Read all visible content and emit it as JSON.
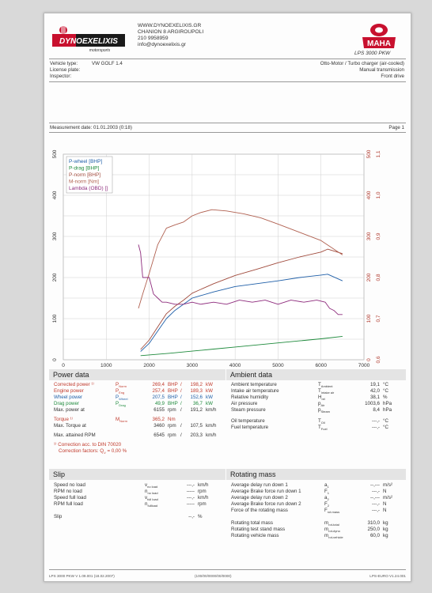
{
  "header": {
    "website": "WWW.DYNOEXELIXIS.GR",
    "street": "CHANION 8 ARGIROUPOLI",
    "phone": "210 9958959",
    "email": "info@dynoexelixis.gr",
    "logo_text": "DYNOEXELIXIS",
    "logo_sub": "motorsports",
    "brand": "MAHA",
    "model": "LPS 3000 PKW"
  },
  "vehicle": {
    "type_label": "Vehicle type:",
    "type_value": "VW GOLF 1.4",
    "plate_label": "License plate:",
    "inspector_label": "Inspector:",
    "engine": "Otto-Motor / Turbo charger (air-cooled)",
    "transmission": "Manual transmission",
    "drive": "Front drive"
  },
  "measurement": {
    "date_label": "Measurement date: 01.01.2003 (0:18)",
    "page": "Page 1"
  },
  "chart_data": {
    "type": "line",
    "xlabel": "n [rpm]",
    "xlim": [
      0,
      7000
    ],
    "x_ticks": [
      "0",
      "1000",
      "2000",
      "3000",
      "4000",
      "5000",
      "6000",
      "7000"
    ],
    "ylim_left": [
      0,
      500
    ],
    "left_ticks": [
      "0",
      "100",
      "200",
      "300",
      "400",
      "500"
    ],
    "right_outer_ticks": [
      "0",
      "100",
      "200",
      "300",
      "400",
      "500"
    ],
    "right_inner_ticks": [
      "0,6",
      "0,7",
      "0,8",
      "0,9",
      "1,0",
      "1,1"
    ],
    "grid": true,
    "legend_position": "top-left",
    "series": [
      {
        "name": "P-wheel [BHP]",
        "color": "#1f5fa8",
        "x": [
          1800,
          2000,
          2200,
          2400,
          2600,
          2800,
          3000,
          3500,
          4000,
          4500,
          5000,
          5500,
          6000,
          6155,
          6500
        ],
        "y": [
          20,
          40,
          70,
          100,
          120,
          135,
          150,
          165,
          178,
          185,
          192,
          200,
          206,
          208,
          192
        ]
      },
      {
        "name": "P-drag [BHP]",
        "color": "#1e8a3c",
        "x": [
          1800,
          2500,
          3000,
          3500,
          4000,
          4500,
          5000,
          5500,
          6000,
          6500
        ],
        "y": [
          10,
          16,
          21,
          26,
          31,
          36,
          41,
          46,
          51,
          57
        ]
      },
      {
        "name": "P-norm [BHP]",
        "color": "#a04a3c",
        "x": [
          1800,
          2000,
          2200,
          2400,
          2600,
          2800,
          3000,
          3500,
          4000,
          4500,
          5000,
          5500,
          6000,
          6155,
          6500
        ],
        "y": [
          25,
          48,
          80,
          112,
          130,
          145,
          162,
          185,
          205,
          220,
          236,
          250,
          262,
          269,
          258
        ]
      },
      {
        "name": "M-norm [Nm]",
        "color": "#b06050",
        "x": [
          1750,
          1850,
          2000,
          2200,
          2400,
          2600,
          2800,
          3000,
          3200,
          3460,
          3800,
          4200,
          4600,
          5000,
          5500,
          6000,
          6500
        ],
        "y": [
          125,
          160,
          210,
          280,
          320,
          328,
          335,
          350,
          358,
          365,
          362,
          355,
          345,
          330,
          310,
          290,
          255
        ]
      },
      {
        "name": "Lambda (OBD) []",
        "color": "#8e2c7d",
        "x": [
          1750,
          1800,
          1850,
          1900,
          2000,
          2100,
          2200,
          2300,
          2400,
          2600,
          2800,
          3000,
          3200,
          3500,
          3800,
          4100,
          4400,
          4700,
          5000,
          5300,
          5600,
          5900,
          6100,
          6200,
          6300,
          6400,
          6500
        ],
        "y": [
          0.88,
          0.86,
          0.8,
          0.8,
          0.8,
          0.76,
          0.75,
          0.74,
          0.74,
          0.735,
          0.735,
          0.74,
          0.735,
          0.74,
          0.735,
          0.745,
          0.74,
          0.745,
          0.735,
          0.745,
          0.74,
          0.745,
          0.74,
          0.725,
          0.72,
          0.71,
          0.71
        ]
      }
    ]
  },
  "power": {
    "title": "Power data",
    "corrected_label": "Corrected power ¹⁾",
    "corrected_sym": "P",
    "corrected_sub": "Norm",
    "corrected_v1": "269,4",
    "corrected_u1": "BHP",
    "corrected_v2": "198,2",
    "corrected_u2": "kW",
    "engine_label": "Engine power",
    "engine_sym": "P",
    "engine_sub": "Eng",
    "engine_v1": "257,4",
    "engine_u1": "BHP",
    "engine_v2": "189,3",
    "engine_u2": "kW",
    "wheel_label": "Wheel power",
    "wheel_sym": "P",
    "wheel_sub": "Wheel",
    "wheel_v1": "207,5",
    "wheel_u1": "BHP",
    "wheel_v2": "152,6",
    "wheel_u2": "kW",
    "drag_label": "Drag power",
    "drag_sym": "P",
    "drag_sub": "Drag",
    "drag_v1": "49,9",
    "drag_u1": "BHP",
    "drag_v2": "36,7",
    "drag_u2": "kW",
    "maxp_label": "Max. power at",
    "maxp_v1": "6155",
    "maxp_u1": "rpm",
    "maxp_v2": "191,2",
    "maxp_u2": "km/h",
    "torque_label": "Torque ¹⁾",
    "torque_sym": "M",
    "torque_sub": "Norm",
    "torque_v1": "365,2",
    "torque_u1": "Nm",
    "maxt_label": "Max. Torque at",
    "maxt_v1": "3460",
    "maxt_u1": "rpm",
    "maxt_v2": "107,5",
    "maxt_u2": "km/h",
    "maxrpm_label": "Max. attained RPM",
    "maxrpm_v1": "6545",
    "maxrpm_u1": "rpm",
    "maxrpm_v2": "203,3",
    "maxrpm_u2": "km/h",
    "correction_note": "¹⁾ Correction acc. to DIN 70020",
    "correction_factors": "Correction factors: Q",
    "correction_q": "0,00 %"
  },
  "ambient": {
    "title": "Ambient data",
    "rows": [
      {
        "label": "Ambient temperature",
        "sym": "T",
        "sub": "Ambient",
        "val": "19,1",
        "unit": "°C"
      },
      {
        "label": "Intake air temperature",
        "sym": "T",
        "sub": "Intake air",
        "val": "42,0",
        "unit": "°C"
      },
      {
        "label": "Relative humidity",
        "sym": "H",
        "sub": "rel",
        "val": "38,1",
        "unit": "%"
      },
      {
        "label": "Air pressure",
        "sym": "p",
        "sub": "Air",
        "val": "1003,6",
        "unit": "hPa"
      },
      {
        "label": "Steam pressure",
        "sym": "p",
        "sub": "Steam",
        "val": "8,4",
        "unit": "hPa"
      },
      {
        "label": "Oil temperature",
        "sym": "T",
        "sub": "Oil",
        "val": "---,-",
        "unit": "°C"
      },
      {
        "label": "Fuel temperature",
        "sym": "T",
        "sub": "Fuel",
        "val": "---,-",
        "unit": "°C"
      }
    ]
  },
  "slip": {
    "title": "Slip",
    "rows": [
      {
        "label": "Speed no load",
        "sym": "v",
        "sub": "no load",
        "val": "---,-",
        "unit": "km/h"
      },
      {
        "label": "RPM no load",
        "sym": "n",
        "sub": "no load",
        "val": "-----",
        "unit": "rpm"
      },
      {
        "label": "Speed full load",
        "sym": "v",
        "sub": "full load",
        "val": "---,-",
        "unit": "km/h"
      },
      {
        "label": "RPM full load",
        "sym": "n",
        "sub": "fullload",
        "val": "-----",
        "unit": "rpm"
      },
      {
        "label": "Slip",
        "sym": "",
        "sub": "",
        "val": "--,-",
        "unit": "%"
      }
    ]
  },
  "rotating": {
    "title": "Rotating mass",
    "rows": [
      {
        "label": "Average delay run down 1",
        "sym": "a",
        "sub": "1",
        "val": "--,---",
        "unit": "m/s²"
      },
      {
        "label": "Average Brake force run down 1",
        "sym": "F",
        "sub": "1",
        "val": "---,-",
        "unit": "N"
      },
      {
        "label": "Average delay run down 2",
        "sym": "a",
        "sub": "2",
        "val": "--,---",
        "unit": "m/s²"
      },
      {
        "label": "Average Brake force run down 2",
        "sym": "F",
        "sub": "2",
        "val": "---,-",
        "unit": "N"
      },
      {
        "label": "Force of the rotating mass",
        "sym": "F",
        "sub": "rot.mass",
        "val": "---,-",
        "unit": "N"
      },
      {
        "label": "Rotating total mass",
        "sym": "m",
        "sub": "rot-total",
        "val": "310,0",
        "unit": "kg"
      },
      {
        "label": "Rotating test stand mass",
        "sym": "m",
        "sub": "rot-dyno",
        "val": "250,0",
        "unit": "kg"
      },
      {
        "label": "Rotating vehicle mass",
        "sym": "m",
        "sub": "rot-vehicle",
        "val": "60,0",
        "unit": "kg"
      }
    ]
  },
  "footer": {
    "left": "LPS 3000 PKW V 1.09.001 (18.02.2007)",
    "center": "(100/00/0000/00/0000)",
    "right": "LPS-EURO V1.24.001"
  }
}
